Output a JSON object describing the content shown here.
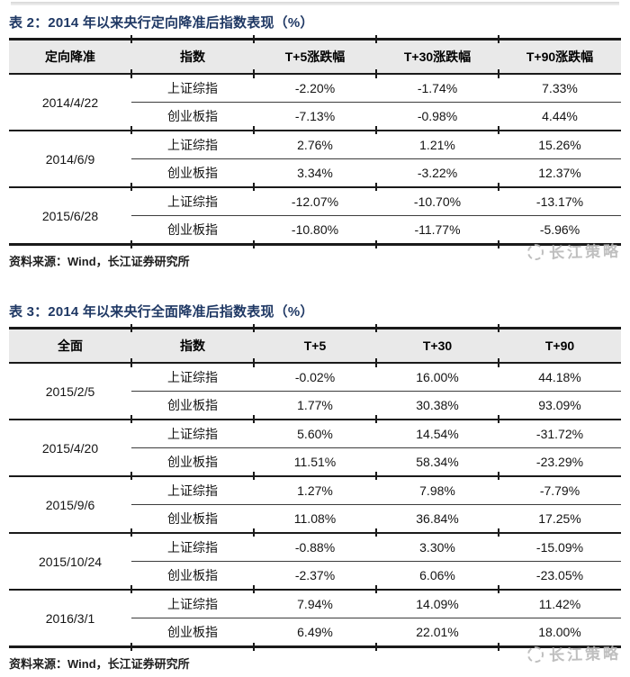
{
  "colors": {
    "navy": "#1f3864",
    "header-bg": "#e9e9e9",
    "border": "#1a1a1a",
    "watermark": "#b9b9b9"
  },
  "tables": [
    {
      "title": "表 2：2014 年以来央行定向降准后指数表现（%）",
      "headers": [
        "定向降准",
        "指数",
        "T+5涨跌幅",
        "T+30涨跌幅",
        "T+90涨跌幅"
      ],
      "groups": [
        {
          "date": "2014/4/22",
          "rows": [
            {
              "index": "上证综指",
              "values": [
                "-2.20%",
                "-1.74%",
                "7.33%"
              ]
            },
            {
              "index": "创业板指",
              "values": [
                "-7.13%",
                "-0.98%",
                "4.44%"
              ]
            }
          ]
        },
        {
          "date": "2014/6/9",
          "rows": [
            {
              "index": "上证综指",
              "values": [
                "2.76%",
                "1.21%",
                "15.26%"
              ]
            },
            {
              "index": "创业板指",
              "values": [
                "3.34%",
                "-3.22%",
                "12.37%"
              ]
            }
          ]
        },
        {
          "date": "2015/6/28",
          "rows": [
            {
              "index": "上证综指",
              "values": [
                "-12.07%",
                "-10.70%",
                "-13.17%"
              ]
            },
            {
              "index": "创业板指",
              "values": [
                "-10.80%",
                "-11.77%",
                "-5.96%"
              ]
            }
          ]
        }
      ],
      "source": "资料来源：Wind，长江证券研究所",
      "watermark": "长江策略"
    },
    {
      "title": "表 3：2014 年以来央行全面降准后指数表现（%）",
      "headers": [
        "全面",
        "指数",
        "T+5",
        "T+30",
        "T+90"
      ],
      "groups": [
        {
          "date": "2015/2/5",
          "rows": [
            {
              "index": "上证综指",
              "values": [
                "-0.02%",
                "16.00%",
                "44.18%"
              ]
            },
            {
              "index": "创业板指",
              "values": [
                "1.77%",
                "30.38%",
                "93.09%"
              ]
            }
          ]
        },
        {
          "date": "2015/4/20",
          "rows": [
            {
              "index": "上证综指",
              "values": [
                "5.60%",
                "14.54%",
                "-31.72%"
              ]
            },
            {
              "index": "创业板指",
              "values": [
                "11.51%",
                "58.34%",
                "-23.29%"
              ]
            }
          ]
        },
        {
          "date": "2015/9/6",
          "rows": [
            {
              "index": "上证综指",
              "values": [
                "1.27%",
                "7.98%",
                "-7.79%"
              ]
            },
            {
              "index": "创业板指",
              "values": [
                "11.08%",
                "36.84%",
                "17.25%"
              ]
            }
          ]
        },
        {
          "date": "2015/10/24",
          "rows": [
            {
              "index": "上证综指",
              "values": [
                "-0.88%",
                "3.30%",
                "-15.09%"
              ]
            },
            {
              "index": "创业板指",
              "values": [
                "-2.37%",
                "6.06%",
                "-23.05%"
              ]
            }
          ]
        },
        {
          "date": "2016/3/1",
          "rows": [
            {
              "index": "上证综指",
              "values": [
                "7.94%",
                "14.09%",
                "11.42%"
              ]
            },
            {
              "index": "创业板指",
              "values": [
                "6.49%",
                "22.01%",
                "18.00%"
              ]
            }
          ]
        }
      ],
      "source": "资料来源：Wind，长江证券研究所",
      "watermark": "长江策略"
    }
  ]
}
